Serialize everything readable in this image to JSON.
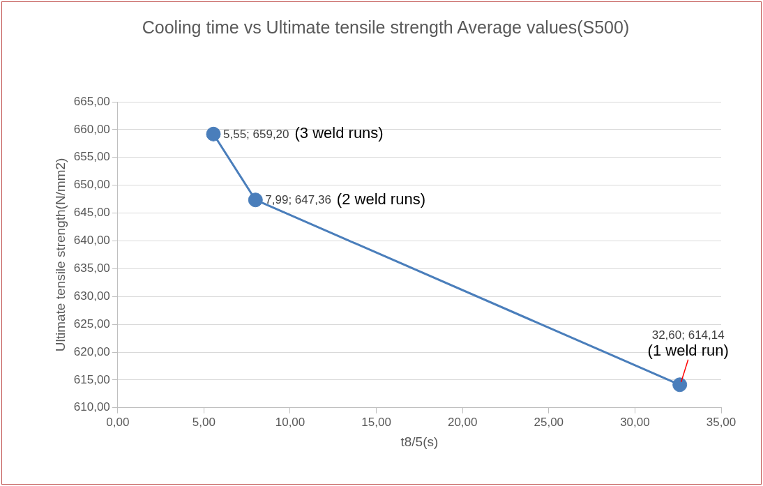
{
  "chart_data": {
    "type": "line",
    "title": "Cooling time vs Ultimate tensile strength Average values(S500)",
    "xlabel": "t8/5(s)",
    "ylabel": "Ultimate tensile strength(N/mm2)",
    "x": [
      5.55,
      7.99,
      32.6
    ],
    "series": [
      {
        "color": "#4a7ebb",
        "values": [
          659.2,
          647.36,
          614.14
        ],
        "value_labels": [
          "5,55; 659,20",
          "7,99; 647,36",
          "32,60; 614,14"
        ]
      }
    ],
    "xlim": [
      0,
      35
    ],
    "xticks": [
      {
        "value": 0,
        "label": "0,00"
      },
      {
        "value": 5,
        "label": "5,00"
      },
      {
        "value": 10,
        "label": "10,00"
      },
      {
        "value": 15,
        "label": "15,00"
      },
      {
        "value": 20,
        "label": "20,00"
      },
      {
        "value": 25,
        "label": "25,00"
      },
      {
        "value": 30,
        "label": "30,00"
      },
      {
        "value": 35,
        "label": "35,00"
      }
    ],
    "ylim": [
      610,
      665
    ],
    "yticks": [
      {
        "value": 610,
        "label": "610,00"
      },
      {
        "value": 615,
        "label": "615,00"
      },
      {
        "value": 620,
        "label": "620,00"
      },
      {
        "value": 625,
        "label": "625,00"
      },
      {
        "value": 630,
        "label": "630,00"
      },
      {
        "value": 635,
        "label": "635,00"
      },
      {
        "value": 640,
        "label": "640,00"
      },
      {
        "value": 645,
        "label": "645,00"
      },
      {
        "value": 650,
        "label": "650,00"
      },
      {
        "value": 655,
        "label": "655,00"
      },
      {
        "value": 660,
        "label": "660,00"
      },
      {
        "value": 665,
        "label": "665,00"
      }
    ],
    "annotations": [
      "(3 weld runs)",
      "(2 weld runs)",
      {
        "text": "(1 weld run)",
        "x": 32.6,
        "y": 614.14
      }
    ],
    "grid": "y",
    "marker": "circle",
    "line_style": "solid",
    "legend": false
  }
}
